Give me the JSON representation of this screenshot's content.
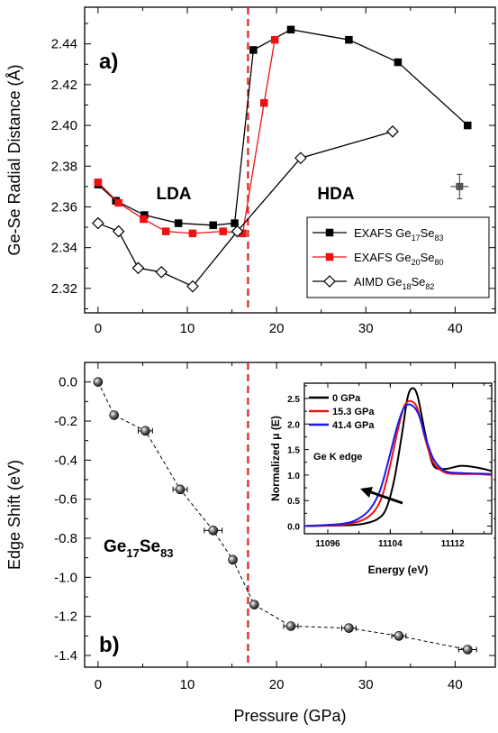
{
  "chart_data": [
    {
      "panel": "a)",
      "type": "line",
      "xlabel": "",
      "ylabel": "Ge-Se Radial Distance (Å)",
      "xlim": [
        -1.5,
        44.5
      ],
      "ylim": [
        2.308,
        2.458
      ],
      "x_ticks": [
        "0",
        "10",
        "20",
        "30",
        "40"
      ],
      "y_ticks": [
        "2.32",
        "2.34",
        "2.36",
        "2.38",
        "2.40",
        "2.42",
        "2.44"
      ],
      "regions": [
        "LDA",
        "HDA"
      ],
      "transition_line_x": 16.8,
      "legend_position": "middle-right",
      "series": [
        {
          "name": "EXAFS Ge17Se83",
          "legend_base": "EXAFS Ge",
          "legend_sub1": "17",
          "legend_mid": "Se",
          "legend_sub2": "83",
          "color": "#000000",
          "marker": "square-filled",
          "x": [
            0,
            2,
            5.2,
            9,
            12.9,
            15.3,
            17.4,
            21.6,
            28.1,
            33.6,
            41.4
          ],
          "y": [
            2.371,
            2.363,
            2.356,
            2.352,
            2.351,
            2.352,
            2.437,
            2.447,
            2.442,
            2.431,
            2.4
          ]
        },
        {
          "name": "EXAFS Ge20Se80",
          "legend_base": "EXAFS Ge",
          "legend_sub1": "20",
          "legend_mid": "Se",
          "legend_sub2": "80",
          "color": "#ee1111",
          "marker": "square-filled",
          "x": [
            0,
            2.3,
            5.1,
            7.6,
            10.6,
            14,
            16.2,
            18.6,
            19.8
          ],
          "y": [
            2.372,
            2.362,
            2.354,
            2.348,
            2.347,
            2.348,
            2.347,
            2.411,
            2.442
          ]
        },
        {
          "name": "AIMD Ge18Se82",
          "legend_base": "AIMD Ge",
          "legend_sub1": "18",
          "legend_mid": "Se",
          "legend_sub2": "82",
          "color": "#000000",
          "marker": "diamond-open",
          "x": [
            0,
            2.3,
            4.5,
            7.1,
            10.6,
            15.6,
            22.7,
            33
          ],
          "y": [
            2.352,
            2.348,
            2.33,
            2.328,
            2.321,
            2.348,
            2.384,
            2.397
          ]
        }
      ],
      "error_point": {
        "x": 40.5,
        "y": 2.37,
        "xerr": 1.0,
        "yerr": 0.006,
        "color": "#555555"
      }
    },
    {
      "panel": "b)",
      "type": "line",
      "xlabel": "Pressure (GPa)",
      "ylabel": "Edge Shift (eV)",
      "xlim": [
        -1.5,
        44.5
      ],
      "ylim": [
        -1.46,
        0.1
      ],
      "x_ticks": [
        "0",
        "10",
        "20",
        "30",
        "40"
      ],
      "y_ticks": [
        "0.0",
        "-0.2",
        "-0.4",
        "-0.6",
        "-0.8",
        "-1.0",
        "-1.2",
        "-1.4"
      ],
      "transition_line_x": 16.8,
      "sample_label_base": "Ge",
      "sample_label_sub1": "17",
      "sample_label_mid": "Se",
      "sample_label_sub2": "83",
      "series": [
        {
          "name": "Ge17Se83 edge shift",
          "color": "#000000",
          "marker": "sphere",
          "x": [
            0,
            1.8,
            5.3,
            9.2,
            12.9,
            15.1,
            17.5,
            21.6,
            28.1,
            33.7,
            41.4
          ],
          "y": [
            0.0,
            -0.17,
            -0.25,
            -0.55,
            -0.76,
            -0.91,
            -1.14,
            -1.25,
            -1.26,
            -1.3,
            -1.37
          ],
          "xerr": [
            0,
            0,
            0.8,
            0.8,
            1.0,
            0,
            0,
            0.8,
            0.8,
            0.8,
            1.0
          ]
        }
      ]
    },
    {
      "panel": "inset",
      "type": "line",
      "xlabel": "Energy (eV)",
      "ylabel": "Normalized μ (E)",
      "xlim": [
        11093,
        11117
      ],
      "ylim": [
        -0.15,
        2.8
      ],
      "x_ticks": [
        "11096",
        "11104",
        "11112"
      ],
      "y_ticks": [
        "0.0",
        "0.5",
        "1.0",
        "1.5",
        "2.0",
        "2.5"
      ],
      "annotation": "Ge K edge",
      "legend_position": "top-left",
      "series": [
        {
          "name": "0 GPa",
          "color": "#000000",
          "x": [
            11093,
            11099,
            11101,
            11102.5,
            11103.5,
            11104.5,
            11105.5,
            11106.2,
            11106.8,
            11107.5,
            11108.5,
            11109.5,
            11111,
            11113,
            11115,
            11117
          ],
          "y": [
            0.0,
            0.02,
            0.06,
            0.15,
            0.35,
            0.9,
            1.8,
            2.5,
            2.7,
            2.55,
            1.8,
            1.2,
            1.12,
            1.18,
            1.15,
            1.08
          ]
        },
        {
          "name": "15.3 GPa",
          "color": "#ee1111",
          "x": [
            11093,
            11098,
            11100.5,
            11102,
            11103,
            11104,
            11105,
            11105.8,
            11106.6,
            11107.5,
            11108.5,
            11109.5,
            11111,
            11113,
            11115,
            11117
          ],
          "y": [
            0.0,
            0.03,
            0.12,
            0.3,
            0.6,
            1.2,
            1.9,
            2.35,
            2.45,
            2.3,
            1.7,
            1.25,
            1.05,
            1.02,
            1.02,
            1.0
          ]
        },
        {
          "name": "41.4 GPa",
          "color": "#1a1aee",
          "x": [
            11093,
            11098,
            11100,
            11101.5,
            11102.7,
            11103.8,
            11104.8,
            11105.7,
            11106.6,
            11107.6,
            11108.6,
            11109.6,
            11111,
            11113,
            11115,
            11117
          ],
          "y": [
            0.0,
            0.05,
            0.15,
            0.35,
            0.7,
            1.3,
            1.9,
            2.3,
            2.38,
            2.2,
            1.7,
            1.3,
            1.08,
            1.04,
            1.03,
            1.02
          ]
        }
      ]
    }
  ]
}
